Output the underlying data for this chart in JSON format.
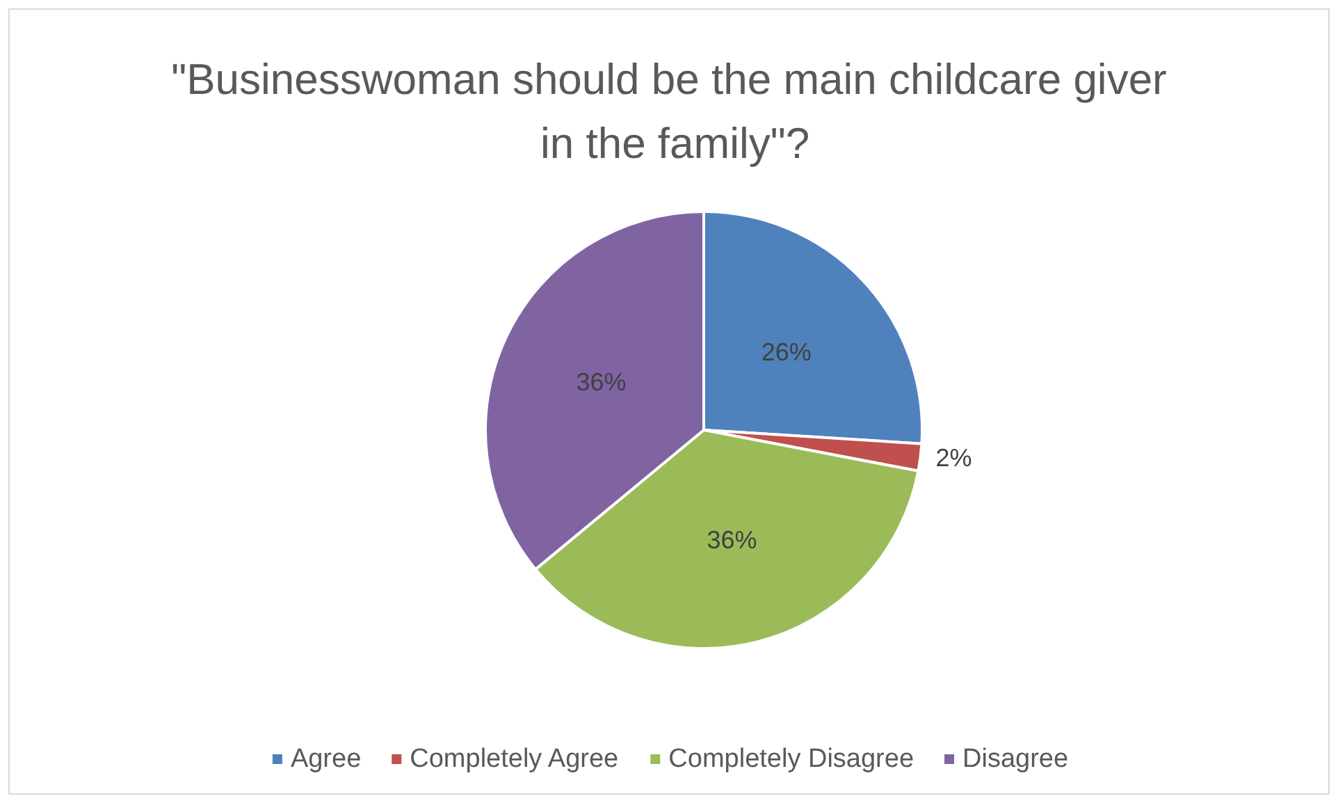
{
  "chart_data": {
    "type": "pie",
    "title": "\"Businesswoman should be the main childcare giver in the family\"?",
    "categories": [
      "Agree",
      "Completely Agree",
      "Completely Disagree",
      "Disagree"
    ],
    "values": [
      26,
      2,
      36,
      36
    ],
    "colors": [
      "#4f81bd",
      "#c0504d",
      "#9bbb59",
      "#8064a2"
    ],
    "value_labels": [
      "26%",
      "2%",
      "36%",
      "36%"
    ],
    "legend": "bottom"
  }
}
